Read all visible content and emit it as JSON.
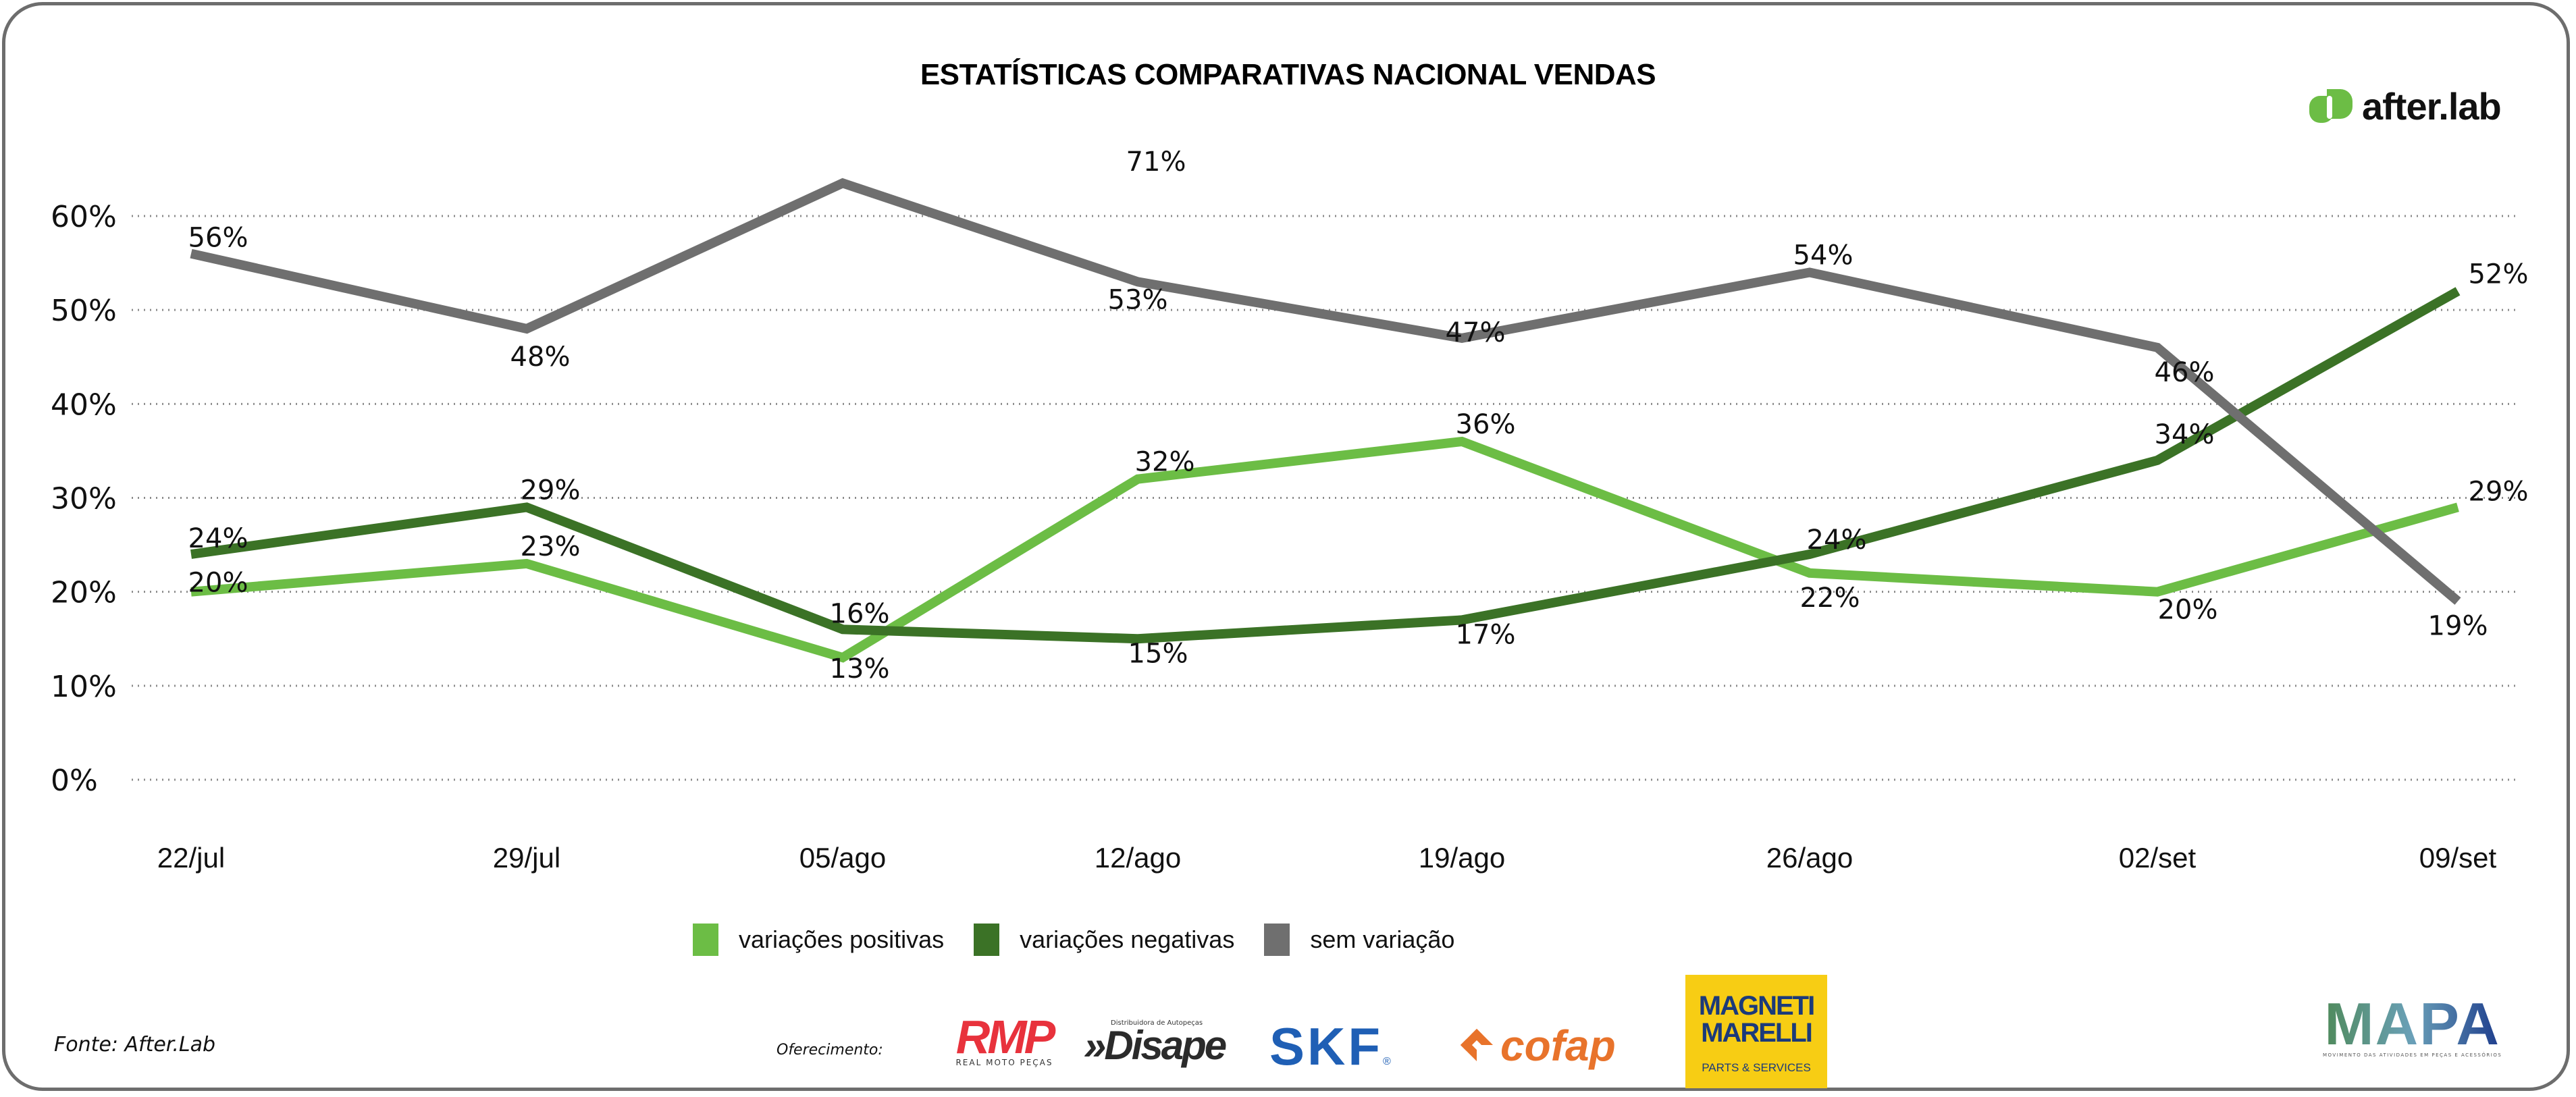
{
  "header": {
    "title": "ESTATÍSTICAS COMPARATIVAS NACIONAL VENDAS",
    "brand": "after.lab"
  },
  "colors": {
    "positive": "#6cbd45",
    "negative": "#3b7226",
    "neutral": "#6f6f6f",
    "gridline": "#8a8a8a",
    "frame": "#6d6d6d"
  },
  "chart_data": {
    "type": "line",
    "title": "ESTATÍSTICAS COMPARATIVAS NACIONAL VENDAS",
    "xlabel": "",
    "ylabel": "",
    "categories": [
      "22/jul",
      "29/jul",
      "05/ago",
      "12/ago",
      "19/ago",
      "26/ago",
      "02/set",
      "09/set"
    ],
    "yticks": [
      "0%",
      "10%",
      "20%",
      "30%",
      "40%",
      "50%",
      "60%"
    ],
    "ylim": [
      0,
      60
    ],
    "grid": true,
    "legend_position": "bottom",
    "series": [
      {
        "name": "variações positivas",
        "color": "#6cbd45",
        "values": [
          20,
          23,
          13,
          32,
          36,
          22,
          20,
          29
        ]
      },
      {
        "name": "variações negativas",
        "color": "#3b7226",
        "values": [
          24,
          29,
          16,
          15,
          17,
          24,
          34,
          52
        ]
      },
      {
        "name": "sem variação",
        "color": "#6f6f6f",
        "values": [
          56,
          48,
          71,
          53,
          47,
          54,
          46,
          19
        ]
      }
    ]
  },
  "legend": [
    {
      "label": "variações positivas",
      "color": "#6cbd45"
    },
    {
      "label": "variações negativas",
      "color": "#3b7226"
    },
    {
      "label": "sem variação",
      "color": "#6f6f6f"
    }
  ],
  "footer": {
    "source": "Fonte: After.Lab",
    "offer_label": "Oferecimento:",
    "sponsors": {
      "rmp": {
        "name": "RMP",
        "tagline": "REAL MOTO PEÇAS"
      },
      "disape": {
        "name": "Disape",
        "tagline": "Distribuidora de Autopeças"
      },
      "skf": {
        "name": "SKF",
        "mark": "®"
      },
      "cofap": {
        "name": "cofap"
      },
      "magneti": {
        "line1": "MAGNETI",
        "line2": "MARELLI",
        "tagline": "PARTS & SERVICES"
      }
    },
    "mapa": {
      "name": "MAPA",
      "tagline": "MOVIMENTO DAS ATIVIDADES EM PEÇAS E ACESSÓRIOS"
    }
  }
}
